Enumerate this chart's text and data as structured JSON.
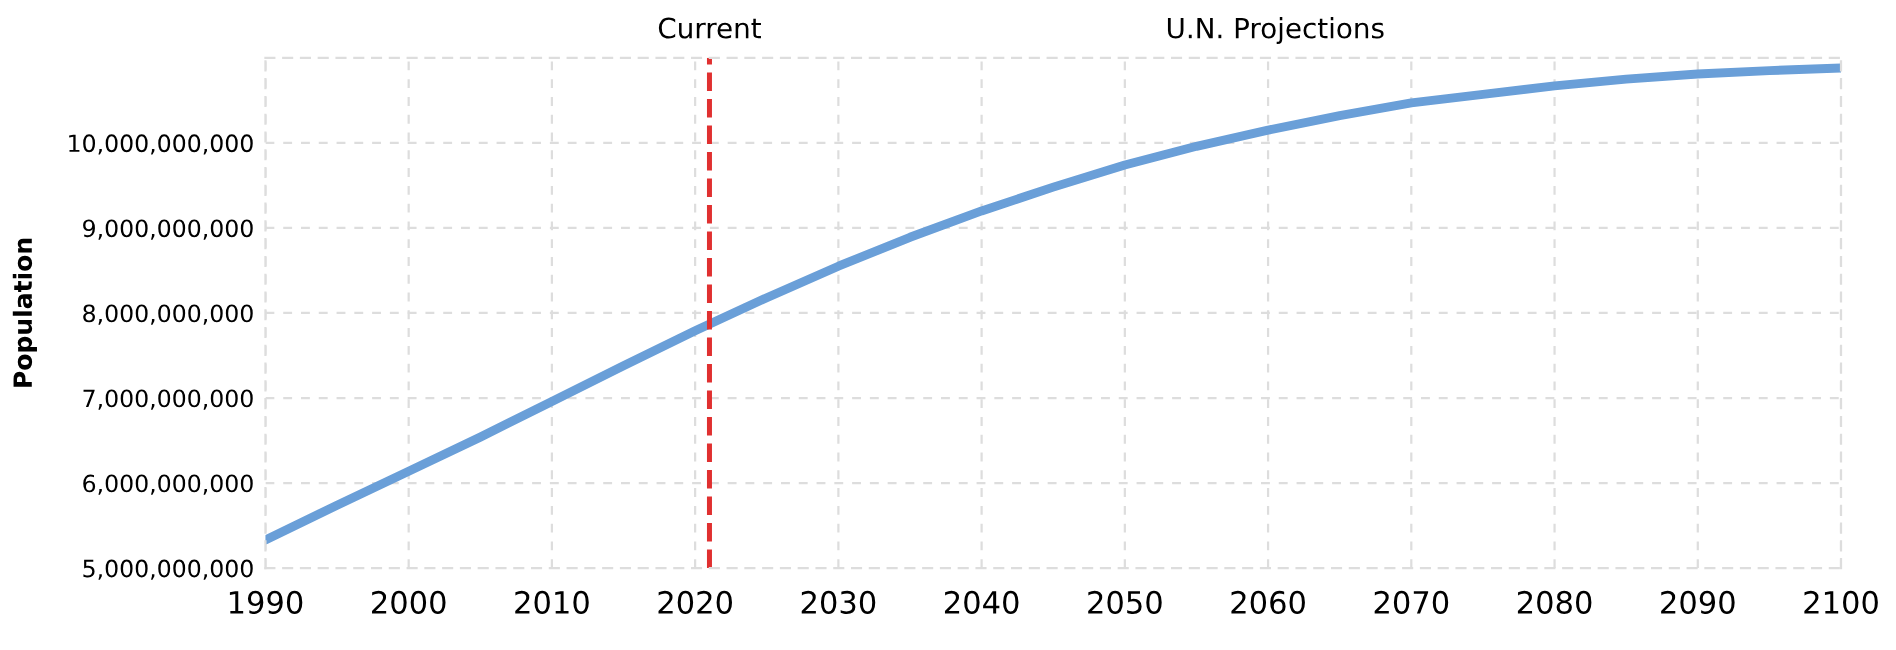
{
  "chart_data": {
    "type": "line",
    "ylabel": "Population",
    "x": [
      1990,
      1995,
      2000,
      2005,
      2010,
      2015,
      2020,
      2025,
      2030,
      2035,
      2040,
      2045,
      2050,
      2055,
      2060,
      2065,
      2070,
      2075,
      2080,
      2085,
      2090,
      2095,
      2100
    ],
    "series": [
      {
        "color": "#6a9fd8",
        "values": [
          5330000000,
          5740000000,
          6140000000,
          6540000000,
          6960000000,
          7380000000,
          7790000000,
          8180000000,
          8550000000,
          8890000000,
          9200000000,
          9480000000,
          9740000000,
          9960000000,
          10150000000,
          10320000000,
          10470000000,
          10570000000,
          10670000000,
          10750000000,
          10810000000,
          10850000000,
          10880000000
        ]
      }
    ],
    "xlim": [
      1990,
      2100
    ],
    "xticks": [
      1990,
      2000,
      2010,
      2020,
      2030,
      2040,
      2050,
      2060,
      2070,
      2080,
      2090,
      2100
    ],
    "ylim": [
      5000000000,
      11000000000
    ],
    "yticks": [
      {
        "value": 5000000000,
        "label": "5,000,000,000"
      },
      {
        "value": 6000000000,
        "label": "6,000,000,000"
      },
      {
        "value": 7000000000,
        "label": "7,000,000,000"
      },
      {
        "value": 8000000000,
        "label": "8,000,000,000"
      },
      {
        "value": 9000000000,
        "label": "9,000,000,000"
      },
      {
        "value": 10000000000,
        "label": "10,000,000,000"
      },
      {
        "value": 11000000000,
        "label": null
      }
    ],
    "ref_lines": [
      {
        "axis": "x",
        "value": 2021,
        "label": "Current",
        "color": "#e03030",
        "line_style": "dashed"
      }
    ],
    "annotations": [
      "U.N. Projections"
    ],
    "grid": true,
    "legend": false,
    "marker": "none",
    "line_style": "solid"
  }
}
